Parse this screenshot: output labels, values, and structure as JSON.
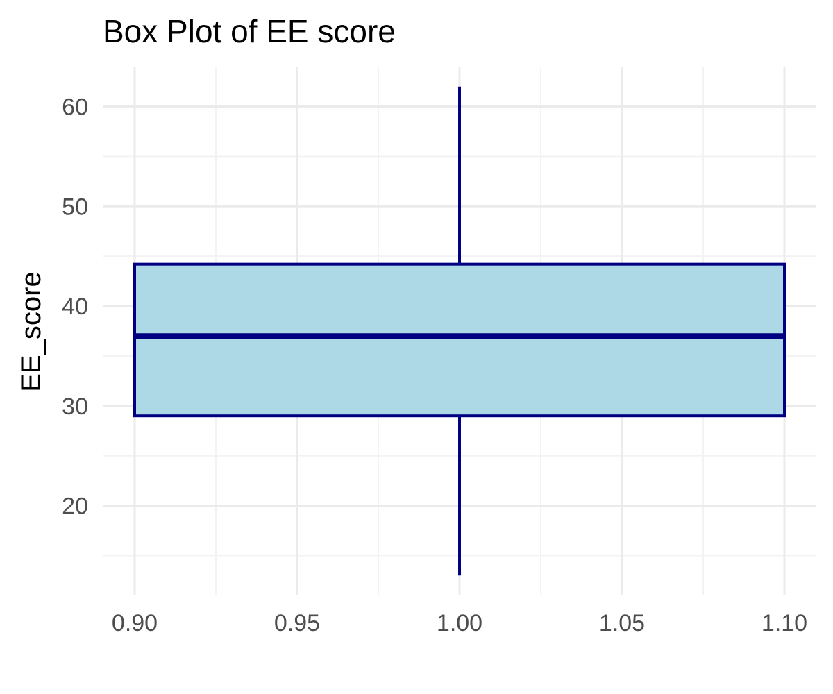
{
  "chart_data": {
    "type": "box",
    "title": "Box Plot of EE score",
    "xlabel": "",
    "ylabel": "EE_score",
    "xlim": [
      0.9,
      1.1
    ],
    "ylim": [
      11,
      64
    ],
    "x_ticks": [
      0.9,
      0.95,
      1.0,
      1.05,
      1.1
    ],
    "x_tick_labels": [
      "0.90",
      "0.95",
      "1.00",
      "1.05",
      "1.10"
    ],
    "y_ticks": [
      20,
      30,
      40,
      50,
      60
    ],
    "y_tick_labels": [
      "20",
      "30",
      "40",
      "50",
      "60"
    ],
    "grid": true,
    "box": {
      "x_center": 1.0,
      "x_left": 0.9,
      "x_right": 1.1,
      "whisker_min": 13,
      "q1": 29,
      "median": 37,
      "q3": 44.2,
      "whisker_max": 62
    },
    "colors": {
      "box_fill": "#add8e6",
      "box_stroke": "#000080",
      "grid_major": "#ebebeb",
      "grid_minor": "#f3f3f3"
    }
  }
}
